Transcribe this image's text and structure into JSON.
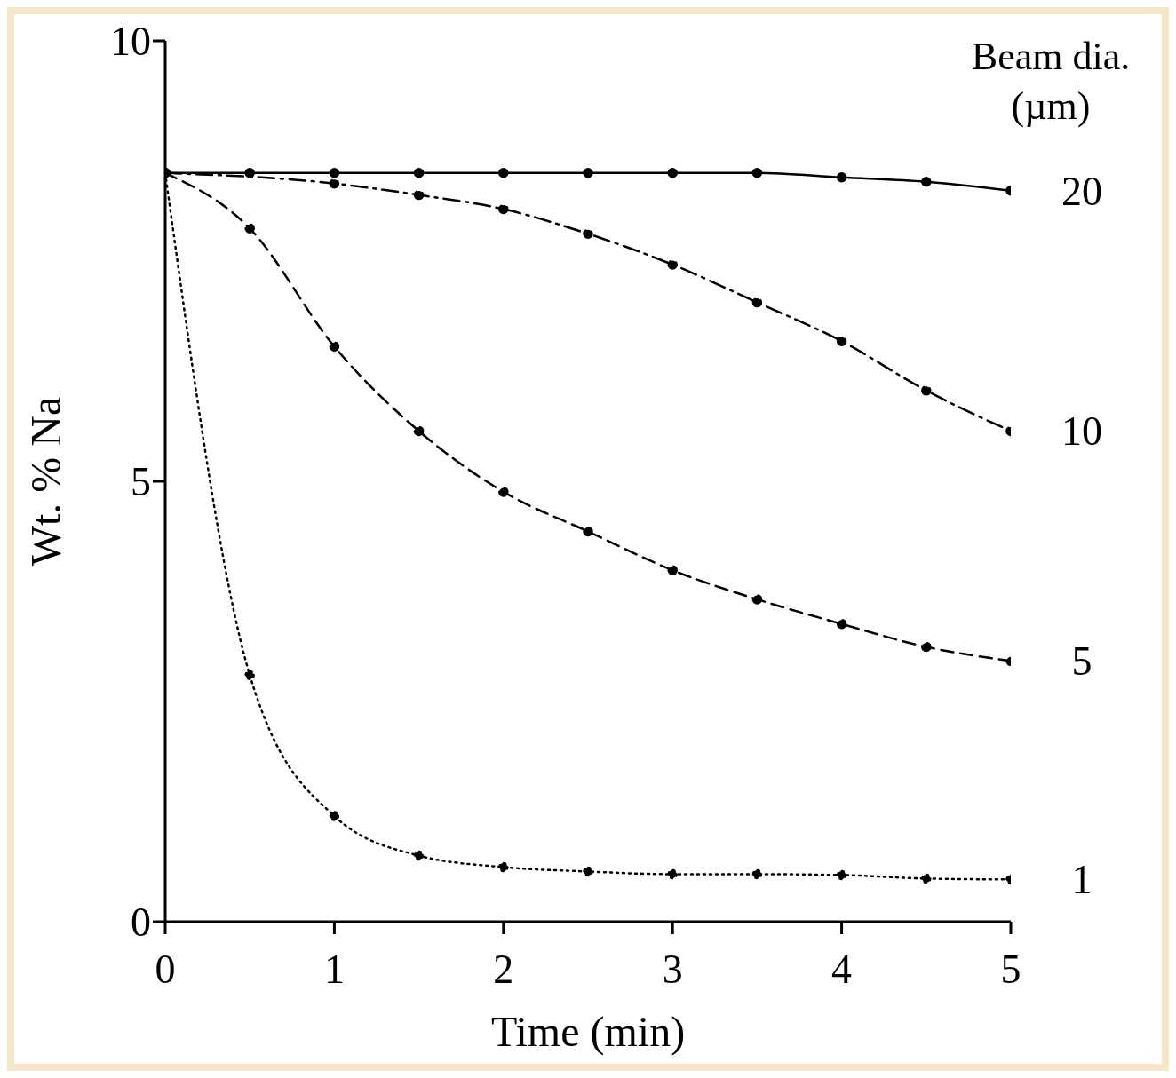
{
  "chart_data": {
    "type": "line",
    "xlabel": "Time (min)",
    "ylabel": "Wt. % Na",
    "legend_title": "Beam dia. (µm)",
    "xlim": [
      0,
      5
    ],
    "xticks": [
      0,
      1,
      2,
      3,
      4,
      5
    ],
    "ylim": [
      0,
      10
    ],
    "yticks": [
      0,
      5,
      10
    ],
    "grid": false,
    "marker": "circle",
    "series": [
      {
        "name": "20",
        "color": "#000000",
        "line_style": "solid",
        "x": [
          0,
          0.5,
          1,
          1.5,
          2,
          2.5,
          3,
          3.5,
          4,
          4.5,
          5
        ],
        "values": [
          8.5,
          8.5,
          8.5,
          8.5,
          8.5,
          8.5,
          8.5,
          8.5,
          8.45,
          8.4,
          8.3
        ]
      },
      {
        "name": "10",
        "color": "#000000",
        "line_style": "dashdot",
        "x": [
          0,
          1,
          1.5,
          2,
          2.5,
          3,
          3.5,
          4,
          4.5,
          5
        ],
        "values": [
          8.5,
          8.38,
          8.25,
          8.09,
          7.81,
          7.46,
          7.03,
          6.59,
          6.03,
          5.57
        ]
      },
      {
        "name": "5",
        "color": "#000000",
        "line_style": "dashed",
        "x": [
          0,
          0.5,
          1,
          1.5,
          2,
          2.5,
          3,
          3.5,
          4,
          4.5,
          5
        ],
        "values": [
          8.5,
          7.87,
          6.53,
          5.57,
          4.88,
          4.43,
          3.99,
          3.66,
          3.38,
          3.12,
          2.96
        ]
      },
      {
        "name": "1",
        "color": "#000000",
        "line_style": "dotted",
        "x": [
          0,
          0.5,
          1,
          1.5,
          2,
          2.5,
          3,
          3.5,
          4,
          4.5,
          5
        ],
        "values": [
          8.5,
          2.8,
          1.2,
          0.75,
          0.62,
          0.57,
          0.54,
          0.54,
          0.53,
          0.49,
          0.48
        ]
      }
    ]
  }
}
